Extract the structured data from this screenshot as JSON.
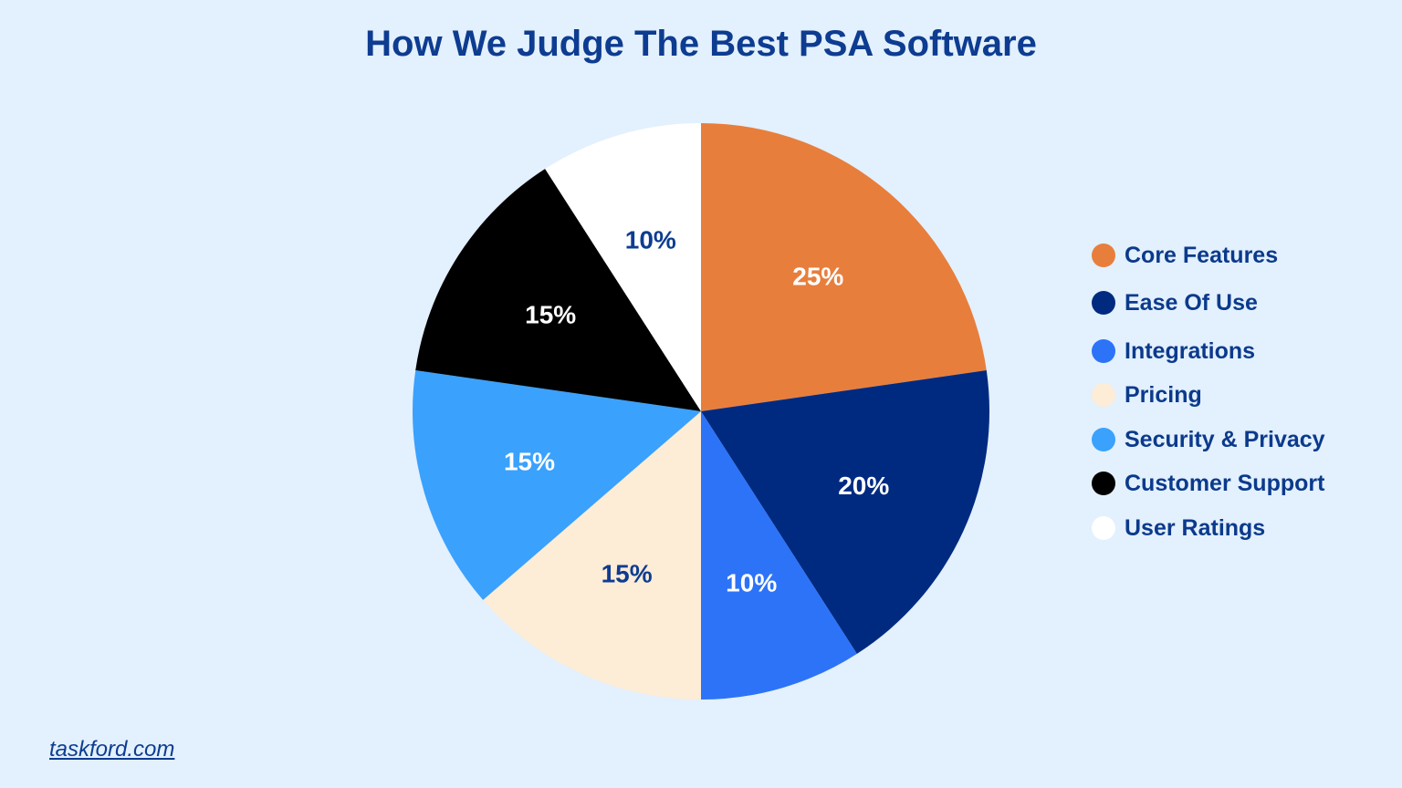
{
  "chart_data": {
    "type": "pie",
    "title": "How We Judge The Best PSA Software",
    "categories": [
      "Core Features",
      "Ease Of Use",
      "Integrations",
      "Pricing",
      "Security & Privacy",
      "Customer Support",
      "User Ratings"
    ],
    "values": [
      25,
      20,
      10,
      15,
      15,
      15,
      10
    ],
    "value_labels": [
      "25%",
      "20%",
      "10%",
      "15%",
      "15%",
      "15%",
      "10%"
    ],
    "colors": [
      "#e87e3c",
      "#002a80",
      "#2c73f8",
      "#fdecd6",
      "#3aa1fd",
      "#000000",
      "#ffffff"
    ],
    "label_colors": [
      "#ffffff",
      "#ffffff",
      "#ffffff",
      "#0d3c91",
      "#ffffff",
      "#ffffff",
      "#0d3c91"
    ],
    "legend_position": "right",
    "start": "top, clockwise"
  },
  "footer": {
    "source": "taskford.com"
  }
}
